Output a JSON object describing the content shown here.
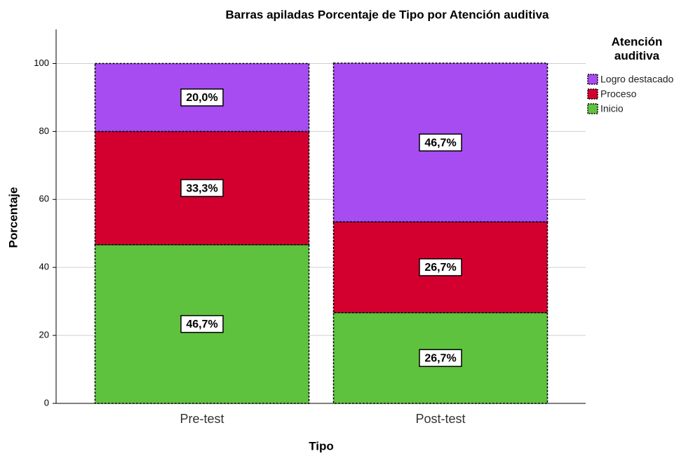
{
  "chart_data": {
    "type": "stacked_bar",
    "title": "Barras apiladas Porcentaje de Tipo por Atención auditiva",
    "x_label": "Tipo",
    "y_label": "Porcentaje",
    "legend_title": "Atención auditiva",
    "categories": [
      "Pre-test",
      "Post-test"
    ],
    "series": [
      {
        "name": "Inicio",
        "color": "#5ec23e",
        "values": [
          46.7,
          26.7
        ],
        "value_labels": [
          "46,7%",
          "26,7%"
        ]
      },
      {
        "name": "Proceso",
        "color": "#d3002f",
        "values": [
          33.3,
          26.7
        ],
        "value_labels": [
          "33,3%",
          "26,7%"
        ]
      },
      {
        "name": "Logro destacado",
        "color": "#a64cf0",
        "values": [
          20.0,
          46.7
        ],
        "value_labels": [
          "20,0%",
          "46,7%"
        ]
      }
    ],
    "ylim": [
      0,
      110
    ],
    "yticks": [
      0,
      20,
      40,
      60,
      80,
      100
    ],
    "grid": true,
    "legend": "right"
  }
}
